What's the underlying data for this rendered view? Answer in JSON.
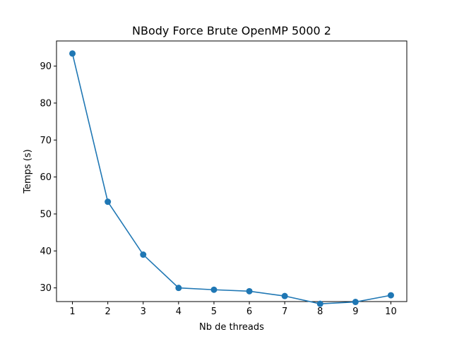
{
  "chart_data": {
    "type": "line",
    "title": "NBody Force Brute OpenMP 5000 2",
    "xlabel": "Nb de threads",
    "ylabel": "Temps (s)",
    "x": [
      1,
      2,
      3,
      4,
      5,
      6,
      7,
      8,
      9,
      10
    ],
    "series": [
      {
        "values": [
          93.4,
          53.3,
          39.0,
          30.0,
          29.5,
          29.1,
          27.8,
          25.7,
          26.2,
          28.0
        ]
      }
    ],
    "xlim": [
      0.55,
      10.45
    ],
    "ylim": [
      26.3,
      96.8
    ],
    "xticks": [
      1,
      2,
      3,
      4,
      5,
      6,
      7,
      8,
      9,
      10
    ],
    "yticks": [
      30,
      40,
      50,
      60,
      70,
      80,
      90
    ],
    "line_color": "#1f77b4",
    "marker": "circle",
    "grid": false,
    "legend": "none"
  }
}
